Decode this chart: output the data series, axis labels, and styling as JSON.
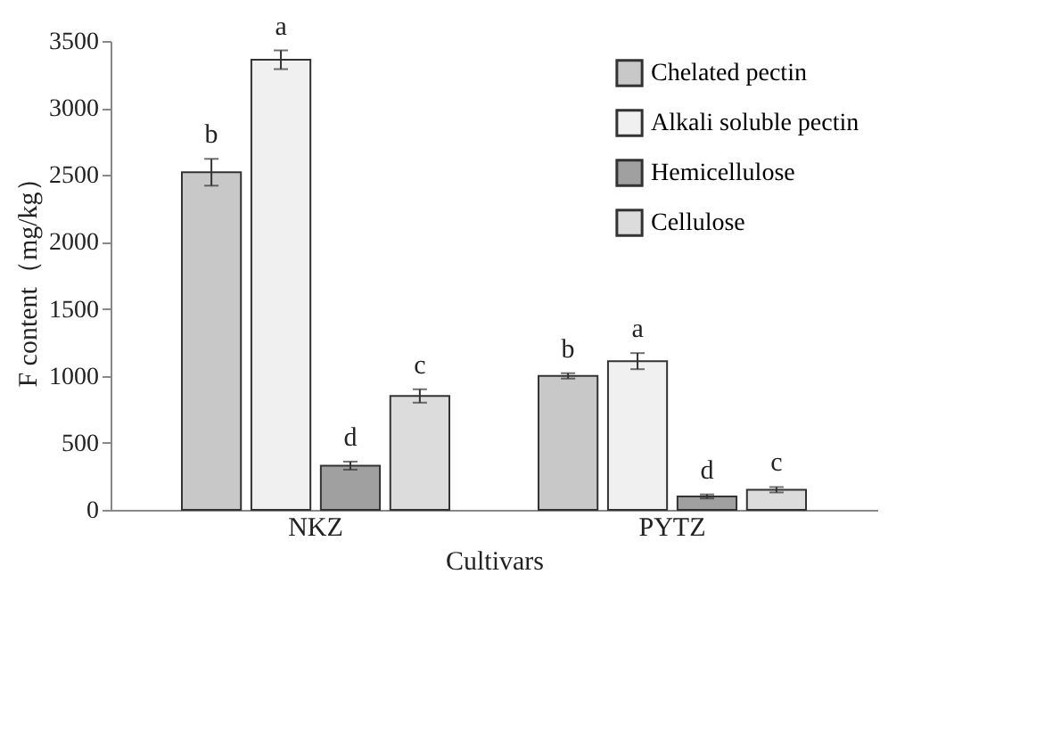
{
  "chart_data": {
    "type": "bar",
    "xlabel": "Cultivars",
    "ylabel": "F content（mg/kg）",
    "categories": [
      "NKZ",
      "PYTZ"
    ],
    "series": [
      {
        "name": "Chelated pectin",
        "color": "#c8c8c8",
        "values": [
          2520,
          1000
        ],
        "errors": [
          100,
          20
        ],
        "value_labels": [
          "b",
          "b"
        ]
      },
      {
        "name": "Alkali soluble pectin",
        "color": "#f0f0f0",
        "values": [
          3360,
          1110
        ],
        "errors": [
          70,
          60
        ],
        "value_labels": [
          "a",
          "a"
        ]
      },
      {
        "name": "Hemicellulose",
        "color": "#a0a0a0",
        "values": [
          330,
          100
        ],
        "errors": [
          30,
          15
        ],
        "value_labels": [
          "d",
          "d"
        ]
      },
      {
        "name": "Cellulose",
        "color": "#dcdcdc",
        "values": [
          850,
          150
        ],
        "errors": [
          50,
          20
        ],
        "value_labels": [
          "c",
          "c"
        ]
      }
    ],
    "ylim": [
      0,
      3500
    ],
    "yticks": [
      0,
      500,
      1000,
      1500,
      2000,
      2500,
      3000,
      3500
    ],
    "grid": false,
    "legend": "top right"
  }
}
